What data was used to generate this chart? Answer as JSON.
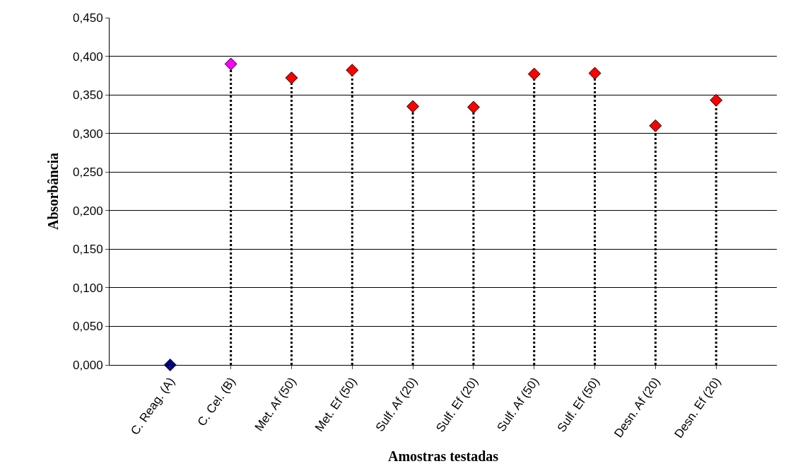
{
  "chart_data": {
    "type": "lollipop",
    "xlabel": "Amostras testadas",
    "ylabel": "Absorbância",
    "categories": [
      "C. Reag. (A)",
      "C. Cel. (B)",
      "Met. Af (50)",
      "Met. Ef (50)",
      "Sulf. Af (20)",
      "Sulf. Ef (20)",
      "Sulf. Af (50)",
      "Sulf. Ef (50)",
      "Desn. Af (20)",
      "Desn. Ef (20)"
    ],
    "values": [
      0.0,
      0.39,
      0.372,
      0.382,
      0.335,
      0.334,
      0.377,
      0.378,
      0.31,
      0.343
    ],
    "colors": [
      "#000080",
      "#ff00ff",
      "#ff0000",
      "#ff0000",
      "#ff0000",
      "#ff0000",
      "#ff0000",
      "#ff0000",
      "#ff0000",
      "#ff0000"
    ],
    "ylim": [
      0,
      0.45
    ],
    "yticks": [
      {
        "value": 0,
        "label": "0,000"
      },
      {
        "value": 0.05,
        "label": "0,050"
      },
      {
        "value": 0.1,
        "label": "0,100"
      },
      {
        "value": 0.15,
        "label": "0,150"
      },
      {
        "value": 0.2,
        "label": "0,200"
      },
      {
        "value": 0.25,
        "label": "0,250"
      },
      {
        "value": 0.3,
        "label": "0,300"
      },
      {
        "value": 0.35,
        "label": "0,350"
      },
      {
        "value": 0.4,
        "label": "0,400"
      },
      {
        "value": 0.45,
        "label": "0,450"
      }
    ],
    "grid": "y",
    "marker": "diamond",
    "line_style": "dotted"
  }
}
